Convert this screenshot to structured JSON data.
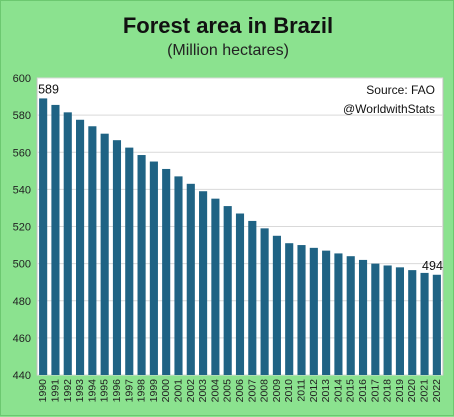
{
  "title": "Forest area in Brazil",
  "subtitle": "(Million hectares)",
  "source": "Source: FAO",
  "credit": "@WorldwithStats",
  "colors": {
    "background": "#8be28f",
    "plot": "#ffffff",
    "bar": "#1f6384",
    "grid": "#d9d9d9"
  },
  "chart_data": {
    "type": "bar",
    "title": "Forest area in Brazil",
    "subtitle": "(Million hectares)",
    "categories": [
      "1990",
      "1991",
      "1992",
      "1993",
      "1994",
      "1995",
      "1996",
      "1997",
      "1998",
      "1999",
      "2000",
      "2001",
      "2002",
      "2003",
      "2004",
      "2005",
      "2006",
      "2007",
      "2008",
      "2009",
      "2010",
      "2011",
      "2012",
      "2013",
      "2014",
      "2015",
      "2016",
      "2017",
      "2018",
      "2019",
      "2020",
      "2021",
      "2022"
    ],
    "values": [
      589,
      585.5,
      581.5,
      577.5,
      574,
      570,
      566.5,
      562.5,
      558.5,
      555,
      551,
      547,
      543,
      539,
      535,
      531,
      527,
      523,
      519,
      515,
      511,
      510,
      508.5,
      507,
      505.5,
      504,
      502,
      500,
      499,
      498,
      496.5,
      495,
      494
    ],
    "ylim": [
      440,
      600
    ],
    "yticks": [
      440,
      460,
      480,
      500,
      520,
      540,
      560,
      580,
      600
    ],
    "data_labels": [
      {
        "category": "1990",
        "text": "589"
      },
      {
        "category": "2022",
        "text": "494"
      }
    ],
    "grid": "horizontal",
    "legend": "none"
  }
}
